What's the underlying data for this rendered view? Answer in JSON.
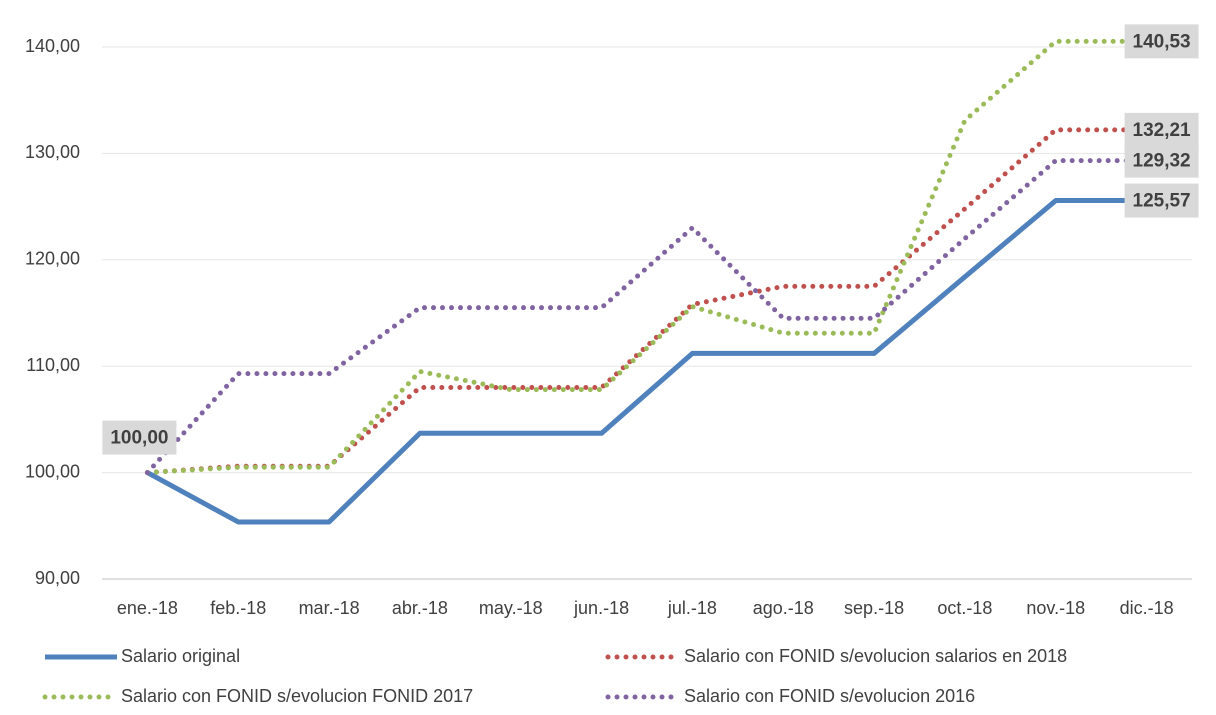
{
  "chart_data": {
    "type": "line",
    "categories": [
      "ene.-18",
      "feb.-18",
      "mar.-18",
      "abr.-18",
      "may.-18",
      "jun.-18",
      "jul.-18",
      "ago.-18",
      "sep.-18",
      "oct.-18",
      "nov.-18",
      "dic.-18"
    ],
    "series": [
      {
        "name": "Salario original",
        "color": "#4f81bd",
        "style": "solid",
        "values": [
          100,
          95.36,
          95.36,
          103.7,
          103.7,
          103.7,
          111.2,
          111.2,
          111.2,
          118.4,
          125.57,
          125.57
        ],
        "value_labels": [
          "100,00",
          null,
          null,
          null,
          null,
          null,
          null,
          null,
          null,
          null,
          null,
          "125,57"
        ]
      },
      {
        "name": "Salario con FONID s/evolucion salarios en 2018",
        "color": "#c0504d",
        "style": "dotted",
        "values": [
          100,
          100.6,
          100.6,
          108,
          108,
          108,
          115.8,
          117.5,
          117.5,
          124.8,
          132.21,
          132.21
        ],
        "value_labels": [
          null,
          null,
          null,
          null,
          null,
          null,
          null,
          null,
          null,
          null,
          null,
          "132,21"
        ]
      },
      {
        "name": "Salario con FONID s/evolucion FONID 2017",
        "color": "#9bbb59",
        "style": "dotted",
        "values": [
          100,
          100.5,
          100.5,
          109.5,
          107.8,
          107.8,
          115.6,
          113.1,
          113.1,
          133.1,
          140.53,
          140.53
        ],
        "value_labels": [
          null,
          null,
          null,
          null,
          null,
          null,
          null,
          null,
          null,
          null,
          null,
          "140,53"
        ]
      },
      {
        "name": "Salario con FONID s/evolucion 2016",
        "color": "#8064a2",
        "style": "dotted",
        "values": [
          100,
          109.3,
          109.3,
          115.5,
          115.5,
          115.5,
          123,
          114.5,
          114.5,
          122,
          129.32,
          129.32
        ],
        "value_labels": [
          null,
          null,
          null,
          null,
          null,
          null,
          null,
          null,
          null,
          null,
          null,
          "129,32"
        ]
      }
    ],
    "ylim": [
      90,
      141
    ],
    "yticks": [
      {
        "value": 90,
        "label": "90,00"
      },
      {
        "value": 100,
        "label": "100,00"
      },
      {
        "value": 110,
        "label": "110,00"
      },
      {
        "value": 120,
        "label": "120,00"
      },
      {
        "value": 130,
        "label": "130,00"
      },
      {
        "value": 140,
        "label": "140,00"
      }
    ],
    "grid": true
  }
}
